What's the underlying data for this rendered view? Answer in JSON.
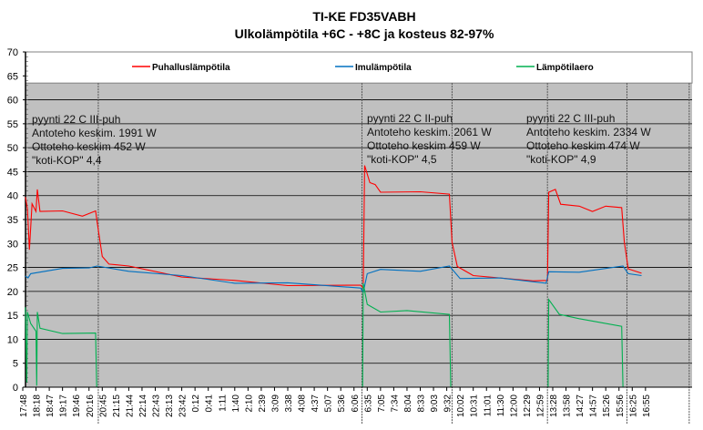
{
  "chart_data": {
    "type": "line",
    "title": "TI-KE FD35VABH",
    "subtitle": "Ulkolämpötila  +6C - +8C ja kosteus 82-97%",
    "ylim": [
      0,
      70
    ],
    "yticks": [
      0,
      5,
      10,
      15,
      20,
      25,
      30,
      35,
      40,
      45,
      50,
      55,
      60,
      65,
      70
    ],
    "grid": true,
    "legend_position": "top",
    "categories": [
      "17:48",
      "18:18",
      "18:47",
      "19:17",
      "19:46",
      "20:16",
      "20:45",
      "21:15",
      "21:44",
      "22:14",
      "22:43",
      "23:13",
      "23:42",
      "0:12",
      "0:41",
      "1:11",
      "1:40",
      "2:10",
      "2:39",
      "3:09",
      "3:38",
      "4:08",
      "4:37",
      "5:07",
      "5:36",
      "6:06",
      "6:35",
      "7:05",
      "7:34",
      "8:04",
      "8:33",
      "9:03",
      "9:32",
      "10:02",
      "10:31",
      "11:01",
      "11:30",
      "12:00",
      "12:29",
      "12:59",
      "13:28",
      "13:58",
      "14:27",
      "14:57",
      "15:26",
      "15:56",
      "16:25",
      "16:55"
    ],
    "series": [
      {
        "name": "Puhalluslämpötila",
        "color": "#ff0000",
        "points": [
          [
            0.2,
            40
          ],
          [
            0.35,
            37
          ],
          [
            0.5,
            29
          ],
          [
            0.7,
            38
          ],
          [
            1,
            37
          ],
          [
            1.1,
            41
          ],
          [
            1.3,
            37
          ],
          [
            3,
            36.5
          ],
          [
            4.5,
            36
          ],
          [
            5.5,
            36.5
          ],
          [
            5.6,
            35
          ],
          [
            6,
            27
          ],
          [
            6.5,
            26
          ],
          [
            8,
            25
          ],
          [
            12,
            23.3
          ],
          [
            16,
            22
          ],
          [
            20,
            21.5
          ],
          [
            25.5,
            21
          ],
          [
            25.7,
            21
          ],
          [
            25.8,
            46
          ],
          [
            26.2,
            43
          ],
          [
            26.6,
            42
          ],
          [
            27,
            41
          ],
          [
            30,
            40.5
          ],
          [
            32.2,
            40.6
          ],
          [
            32.4,
            30
          ],
          [
            32.8,
            25.5
          ],
          [
            34,
            23
          ],
          [
            38.5,
            22.5
          ],
          [
            39.6,
            22
          ],
          [
            39.7,
            41
          ],
          [
            40.2,
            41
          ],
          [
            40.6,
            38.5
          ],
          [
            42,
            37.5
          ],
          [
            43,
            37
          ],
          [
            44,
            37.5
          ],
          [
            45.2,
            37.8
          ],
          [
            45.4,
            30
          ],
          [
            45.7,
            25
          ],
          [
            46.7,
            23.5
          ]
        ]
      },
      {
        "name": "Imulämpötila",
        "color": "#0070c0",
        "points": [
          [
            0.2,
            23.5
          ],
          [
            0.4,
            22.5
          ],
          [
            0.6,
            24
          ],
          [
            3,
            24.5
          ],
          [
            5,
            25.2
          ],
          [
            5.6,
            25
          ],
          [
            8,
            24.5
          ],
          [
            12,
            23
          ],
          [
            16,
            22
          ],
          [
            20,
            21.5
          ],
          [
            25.5,
            21
          ],
          [
            25.7,
            19.5
          ],
          [
            26,
            24
          ],
          [
            27,
            24.3
          ],
          [
            30,
            24.5
          ],
          [
            32.2,
            25
          ],
          [
            33,
            23
          ],
          [
            36,
            22.5
          ],
          [
            39.5,
            22
          ],
          [
            39.7,
            23.8
          ],
          [
            42,
            24.3
          ],
          [
            45.3,
            25
          ],
          [
            45.7,
            24
          ],
          [
            46.7,
            23
          ]
        ]
      },
      {
        "name": "Lämpötilaero",
        "color": "#00b050",
        "points": [
          [
            0.2,
            17
          ],
          [
            0.3,
            1
          ],
          [
            0.35,
            16
          ],
          [
            0.6,
            13
          ],
          [
            1,
            12
          ],
          [
            1.05,
            0.3
          ],
          [
            1.1,
            16
          ],
          [
            1.3,
            12
          ],
          [
            3,
            11.5
          ],
          [
            5.5,
            11
          ],
          [
            5.58,
            0
          ],
          [
            25.65,
            0
          ],
          [
            25.7,
            22
          ],
          [
            26,
            17
          ],
          [
            27,
            16
          ],
          [
            29,
            15.7
          ],
          [
            32.2,
            15.5
          ],
          [
            32.3,
            0
          ],
          [
            39.65,
            0
          ],
          [
            39.7,
            18
          ],
          [
            40.5,
            15.5
          ],
          [
            42,
            14
          ],
          [
            45.2,
            13
          ],
          [
            45.3,
            0
          ]
        ]
      }
    ],
    "vlines": [
      5.7,
      25.6,
      32.4,
      39.6,
      45.6,
      50.3
    ],
    "annotations": [
      {
        "lines": [
          "pyynti 22 C III-puh",
          "Antoteho keskim. 1991 W",
          "Ottoteho keskim 452 W",
          "\"koti-KOP\" 4,4"
        ]
      },
      {
        "lines": [
          "pyynti 22 C II-puh",
          "Antoteho keskim. 2061 W",
          "Ottoteho keskim 459 W",
          "\"koti-KOP\" 4,5"
        ]
      },
      {
        "lines": [
          "pyynti 22 C III-puh",
          "Antoteho keskim. 2334 W",
          "Ottoteho keskim 474 W",
          "\"koti-KOP\" 4,9"
        ]
      }
    ]
  }
}
